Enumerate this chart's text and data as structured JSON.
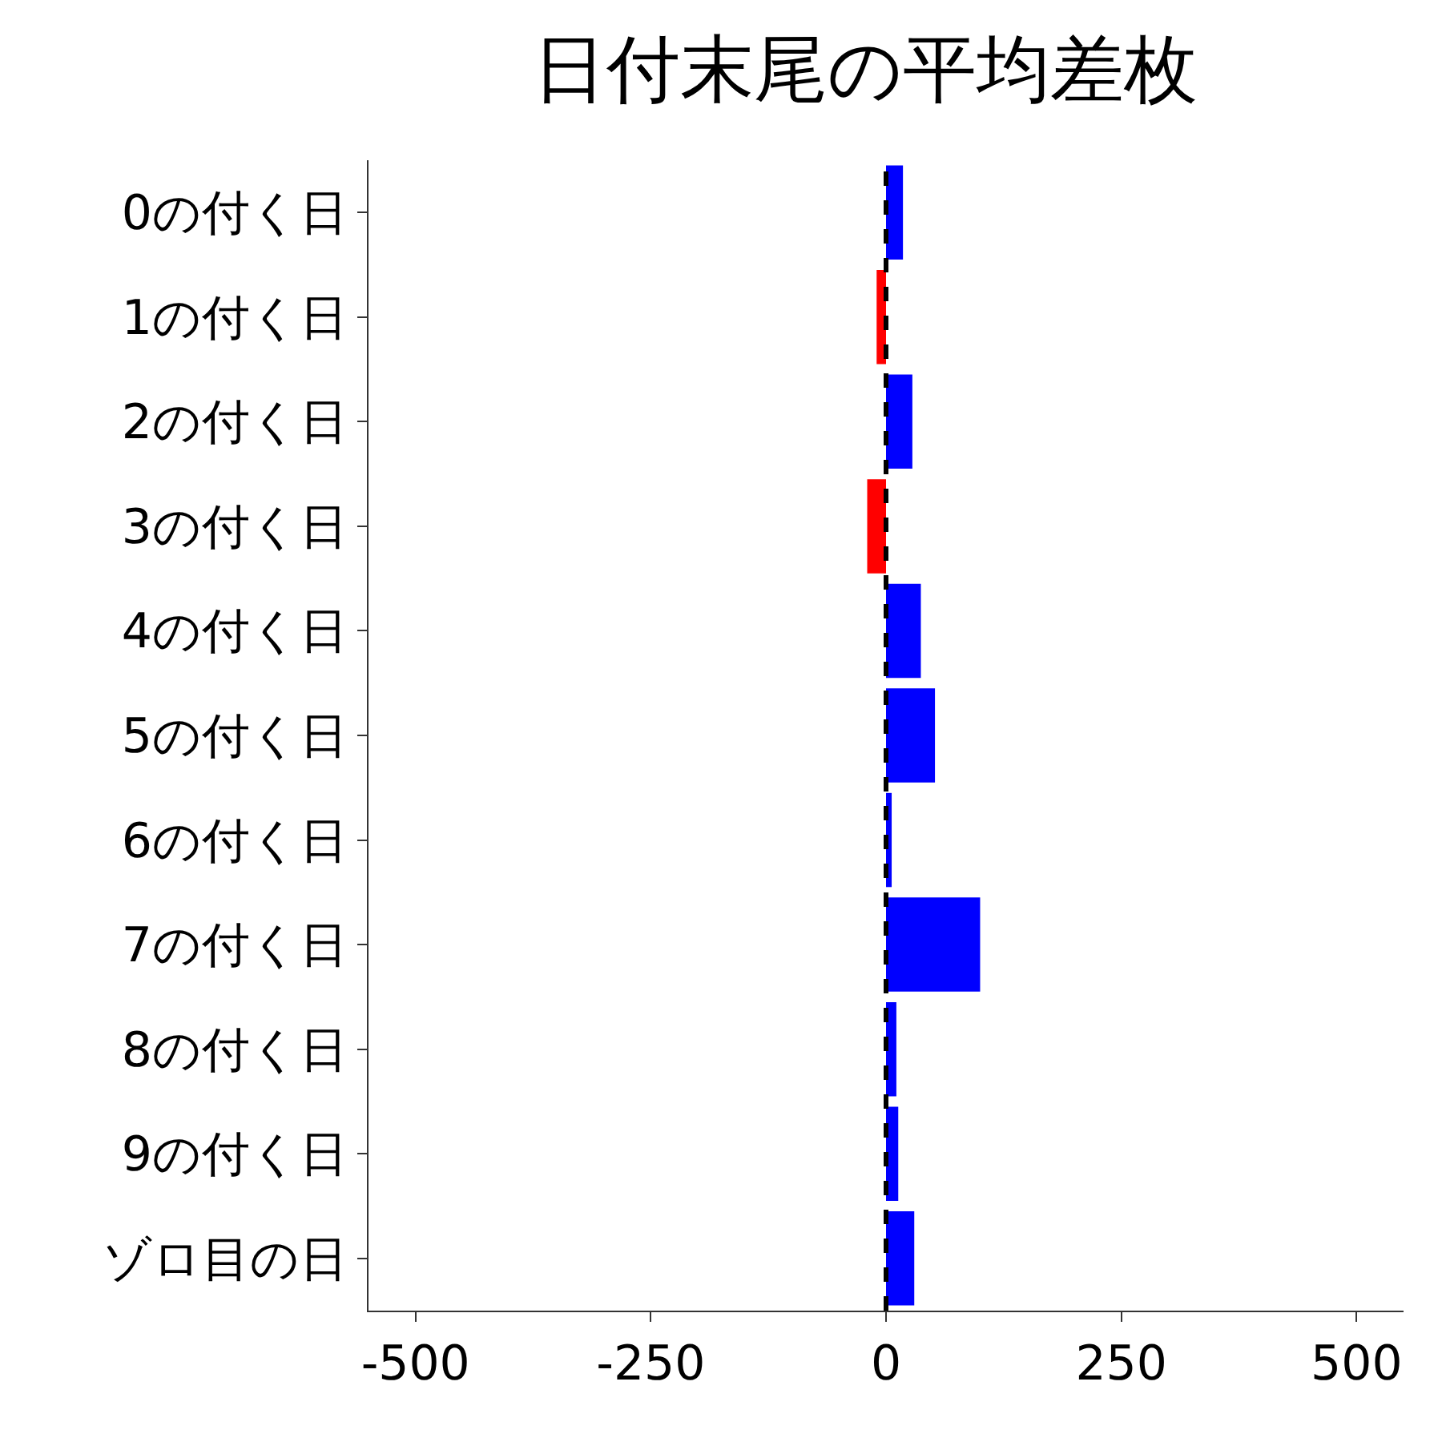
{
  "chart_data": {
    "type": "bar",
    "orientation": "horizontal",
    "title": "日付末尾の平均差枚",
    "categories": [
      "0の付く日",
      "1の付く日",
      "2の付く日",
      "3の付く日",
      "4の付く日",
      "5の付く日",
      "6の付く日",
      "7の付く日",
      "8の付く日",
      "9の付く日",
      "ゾロ目の日"
    ],
    "values": [
      18,
      -10,
      28,
      -20,
      37,
      52,
      6,
      100,
      11,
      13,
      30
    ],
    "colors": [
      "#0000ff",
      "#ff0000",
      "#0000ff",
      "#ff0000",
      "#0000ff",
      "#0000ff",
      "#0000ff",
      "#0000ff",
      "#0000ff",
      "#0000ff",
      "#0000ff"
    ],
    "xlim": [
      -550,
      550
    ],
    "xticks": [
      -500,
      -250,
      0,
      250,
      500
    ],
    "ref_lines": [
      {
        "axis": "x",
        "value": 0,
        "color": "#000000",
        "line_style": "dashed"
      }
    ]
  }
}
